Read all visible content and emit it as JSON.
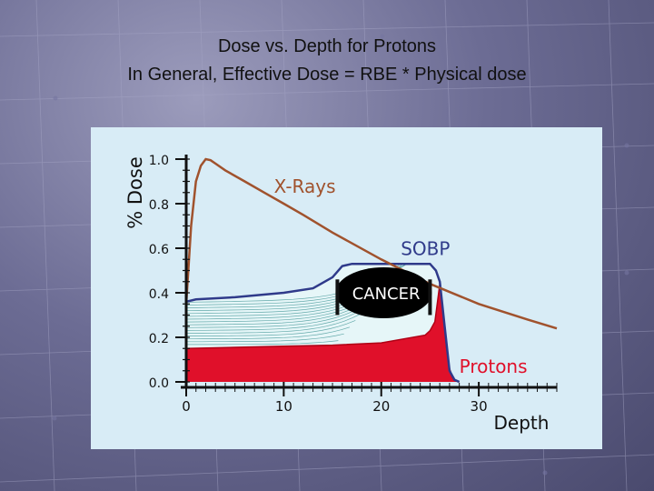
{
  "slide": {
    "title_line1": "Dose vs. Depth for Protons",
    "title_line2": "In General,  Effective Dose = RBE * Physical dose"
  },
  "chart_data": {
    "type": "line",
    "ylabel": "% Dose",
    "xlabel": "Depth",
    "xlim": [
      0,
      38
    ],
    "ylim": [
      0,
      1.0
    ],
    "x_ticks": [
      0,
      10,
      20,
      30
    ],
    "y_ticks": [
      "0.0",
      "0.2",
      "0.4",
      "0.6",
      "0.8",
      "1.0"
    ],
    "series": [
      {
        "name": "X-Rays",
        "color": "#a0522d",
        "x": [
          0,
          0.5,
          1,
          1.5,
          2,
          2.5,
          3,
          4,
          6,
          8,
          10,
          12,
          15,
          20,
          25,
          30,
          35,
          38
        ],
        "y": [
          0.35,
          0.7,
          0.9,
          0.97,
          1.0,
          0.995,
          0.98,
          0.95,
          0.9,
          0.85,
          0.8,
          0.75,
          0.67,
          0.55,
          0.44,
          0.35,
          0.28,
          0.24
        ]
      },
      {
        "name": "SOBP",
        "color": "#2f3a8a",
        "x": [
          0,
          1,
          5,
          10,
          13,
          15,
          16,
          17,
          20,
          23,
          25,
          25.6,
          26,
          26.5,
          27,
          27.5,
          28
        ],
        "y": [
          0.36,
          0.37,
          0.38,
          0.4,
          0.42,
          0.47,
          0.52,
          0.53,
          0.53,
          0.53,
          0.53,
          0.5,
          0.45,
          0.25,
          0.05,
          0.01,
          0
        ]
      },
      {
        "name": "Protons",
        "color": "#e0102a",
        "x": [
          0,
          5,
          10,
          15,
          20,
          24.5,
          25,
          25.5,
          26,
          26.4,
          26.7,
          27,
          27.3,
          27.6,
          28
        ],
        "y": [
          0.15,
          0.155,
          0.16,
          0.165,
          0.175,
          0.21,
          0.23,
          0.27,
          0.44,
          0.29,
          0.15,
          0.06,
          0.02,
          0.005,
          0
        ]
      }
    ],
    "annotations": [
      {
        "label": "X-Rays",
        "x": 9,
        "y": 0.85
      },
      {
        "label": "SOBP",
        "x": 22,
        "y": 0.57
      },
      {
        "label": "CANCER",
        "x": 20.5,
        "y": 0.4
      },
      {
        "label": "Protons",
        "x": 28,
        "y": 0.04
      }
    ],
    "cancer_bounds": [
      15.5,
      25
    ]
  }
}
